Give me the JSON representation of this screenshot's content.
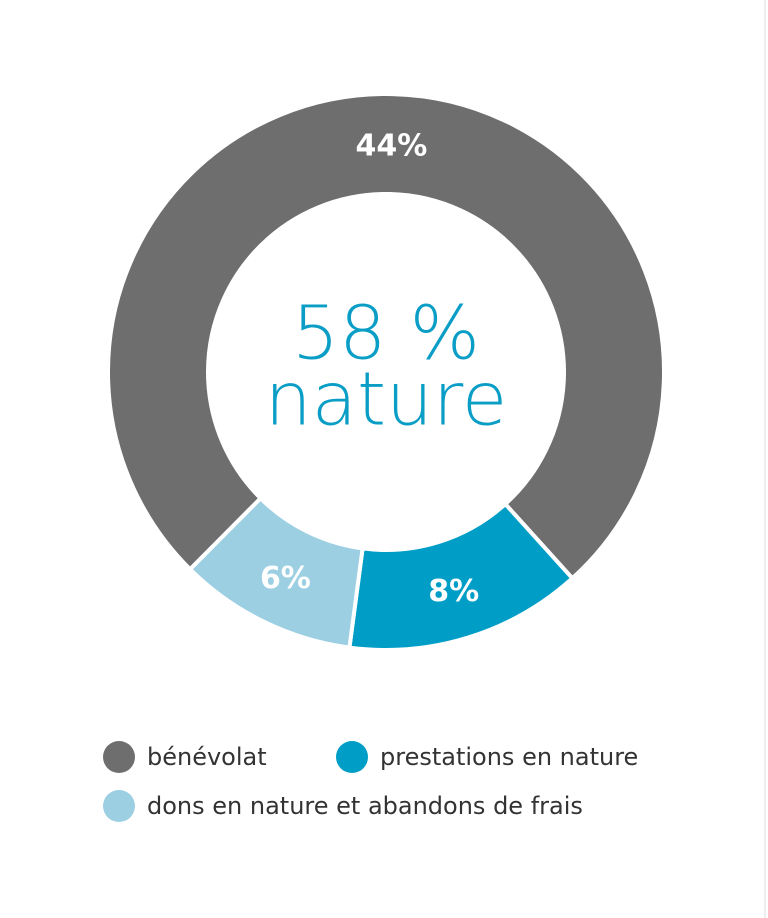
{
  "chart_data": {
    "type": "donut",
    "center_text": [
      "58 %",
      "nature"
    ],
    "categories": [
      "bénévolat",
      "prestations en nature",
      "dons en nature et abandons de frais"
    ],
    "values": [
      44,
      8,
      6
    ],
    "value_labels": [
      "44%",
      "8%",
      "6%"
    ],
    "colors": [
      "#6e6e6e",
      "#009ec6",
      "#9dcfe3"
    ],
    "center_color": "#0a9ec6",
    "legend": "bottom"
  }
}
